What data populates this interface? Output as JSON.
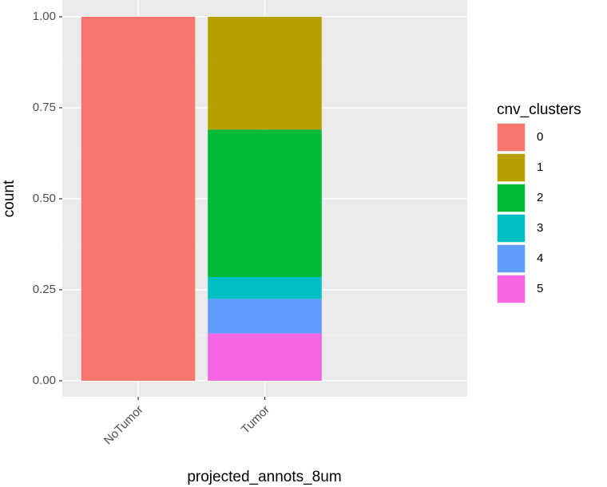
{
  "chart_data": {
    "type": "stacked_bar",
    "x_label": "projected_annots_8um",
    "y_label": "count",
    "categories": [
      "NoTumor",
      "Tumor"
    ],
    "series": [
      {
        "name": "0",
        "color": "#F8766D",
        "values": [
          1,
          0
        ]
      },
      {
        "name": "1",
        "color": "#B79F00",
        "values": [
          0,
          0.31
        ]
      },
      {
        "name": "2",
        "color": "#00BA38",
        "values": [
          0,
          0.405
        ]
      },
      {
        "name": "3",
        "color": "#00BFC4",
        "values": [
          0,
          0.06
        ]
      },
      {
        "name": "4",
        "color": "#619CFF",
        "values": [
          0,
          0.095
        ]
      },
      {
        "name": "5",
        "color": "#F564E3",
        "values": [
          0,
          0.13
        ]
      }
    ],
    "legend_title": "cnv_clusters",
    "ylim": [
      -0.044,
      1.046
    ],
    "yticks": [
      {
        "value": 0,
        "label": "0.00"
      },
      {
        "value": 0.25,
        "label": "0.25"
      },
      {
        "value": 0.5,
        "label": "0.50"
      },
      {
        "value": 0.75,
        "label": "0.75"
      },
      {
        "value": 1,
        "label": "1.00"
      }
    ],
    "grid": true,
    "legend": "right"
  }
}
